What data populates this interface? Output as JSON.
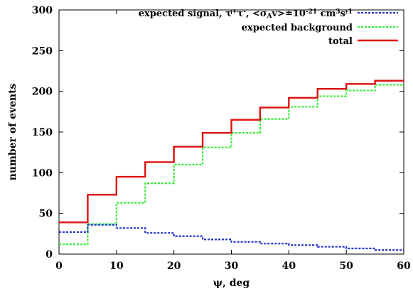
{
  "chart_data": {
    "type": "line",
    "xlabel": "ψ, deg",
    "ylabel": "number of events",
    "xlim": [
      0,
      60
    ],
    "ylim": [
      0,
      300
    ],
    "xticks": [
      0,
      10,
      20,
      30,
      40,
      50,
      60
    ],
    "yticks": [
      0,
      50,
      100,
      150,
      200,
      250,
      300
    ],
    "grid": false,
    "legend_position": "top-right",
    "bin_edges": [
      0,
      5,
      10,
      15,
      20,
      25,
      30,
      35,
      40,
      45,
      50,
      55,
      60
    ],
    "series": [
      {
        "name_parts": [
          "expected signal, τ",
          "+",
          "τ",
          "-",
          ", <σ",
          "A",
          "v>=10",
          "-21",
          " cm",
          "3",
          "s",
          "-1"
        ],
        "style": "dotted",
        "color": "#2233cc",
        "values": [
          27,
          36,
          32,
          26,
          22,
          18,
          15,
          13,
          11,
          9,
          7,
          5
        ]
      },
      {
        "name": "expected background",
        "style": "dotted",
        "color": "#33ee33",
        "values": [
          12,
          37,
          63,
          87,
          110,
          131,
          149,
          166,
          181,
          194,
          201,
          208
        ]
      },
      {
        "name": "total",
        "style": "solid",
        "color": "#dd1111",
        "values": [
          39,
          73,
          95,
          113,
          132,
          149,
          165,
          180,
          192,
          203,
          209,
          213
        ]
      }
    ]
  }
}
